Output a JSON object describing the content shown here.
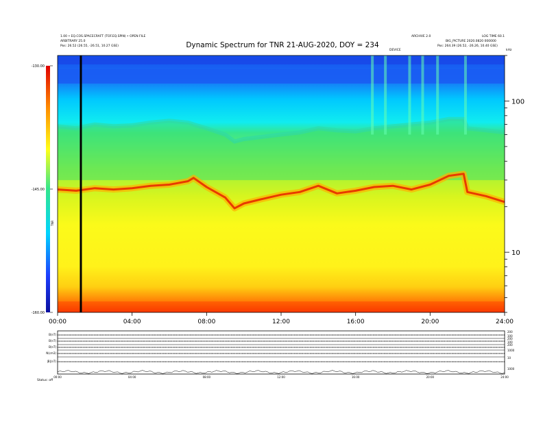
{
  "chart_data": {
    "type": "heatmap",
    "title": "Dynamic Spectrum for TNR 21-AUG-2020, DOY = 234",
    "header_left": [
      "1.00 • EQ.COS.SPACECRAFT (TOF.EQ.SPIN) • OPEN FILE",
      "ARBITRARY 25.0",
      "Pos: 26.52 (26.55, -26.51, 10.27 GSE)"
    ],
    "header_right": [
      "ARCHIVE 2.0",
      "LOG TIME 60.1",
      "BIG_PICTURE 2020.0820 000000",
      "Pos: 264.39 (26.52, -26.26, 10.40 GSE)"
    ],
    "time_marker_label": "DEVICE",
    "right_top_label": "kHz",
    "x_ticks": [
      "00:00",
      "04:00",
      "08:00",
      "12:00",
      "16:00",
      "20:00",
      "24:00"
    ],
    "x_range_hours": [
      0,
      24
    ],
    "y_axis": {
      "scale": "log",
      "unit": "kHz",
      "ticks": [
        10,
        100
      ],
      "range": [
        4,
        200
      ]
    },
    "colorbar": {
      "label": "TNR",
      "ticks": [
        "-130.00",
        "-145.00",
        "-160.00"
      ],
      "range_db": [
        -160,
        -130
      ],
      "colormap": [
        "#0a0f9e",
        "#1d3fff",
        "#00d4ff",
        "#33e68c",
        "#ffff1a",
        "#ff8c00",
        "#e00000"
      ]
    },
    "vertical_marker_hours": 1.25,
    "feature_line_hours": [
      0,
      1,
      2,
      3,
      4,
      5,
      6,
      7,
      7.3,
      8,
      9,
      9.5,
      10,
      11,
      12,
      13,
      14,
      15,
      16,
      17,
      18,
      19,
      20,
      21,
      21.8,
      22,
      23,
      24
    ],
    "feature_line_khz": [
      26.0,
      25.5,
      26.5,
      26.0,
      26.5,
      27.5,
      28.0,
      29.5,
      31.0,
      27.0,
      23.0,
      19.5,
      21.0,
      22.5,
      24.0,
      25.0,
      27.5,
      24.5,
      25.5,
      27.0,
      27.5,
      26.0,
      28.0,
      32.0,
      33.0,
      25.0,
      23.5,
      21.5
    ],
    "cutoff_band_khz": [
      68,
      66,
      70,
      68,
      69,
      72,
      74,
      72,
      70,
      66,
      60,
      54,
      56,
      58,
      60,
      62,
      66,
      64,
      63,
      66,
      68,
      70,
      72,
      76,
      76,
      66,
      64,
      62
    ],
    "intense_bands_khz": [
      [
        180,
        200
      ],
      [
        140,
        160
      ]
    ],
    "bursts_hours": [
      16.9,
      17.6,
      18.9,
      19.6,
      20.4,
      21.9
    ],
    "bottom_panels": {
      "labels": [
        "B(nT)",
        "B(nT)",
        "B(nT)",
        "N(cm3)",
        "|B|(nT)"
      ],
      "right_labels": [
        "200",
        "100",
        "200",
        "100",
        "200",
        "1000",
        "10",
        "1000"
      ],
      "x_ticks": [
        "00:00",
        "04:00",
        "08:00",
        "12:00",
        "16:00",
        "20:00",
        "24:00"
      ],
      "footer_label": "Status: off"
    }
  }
}
